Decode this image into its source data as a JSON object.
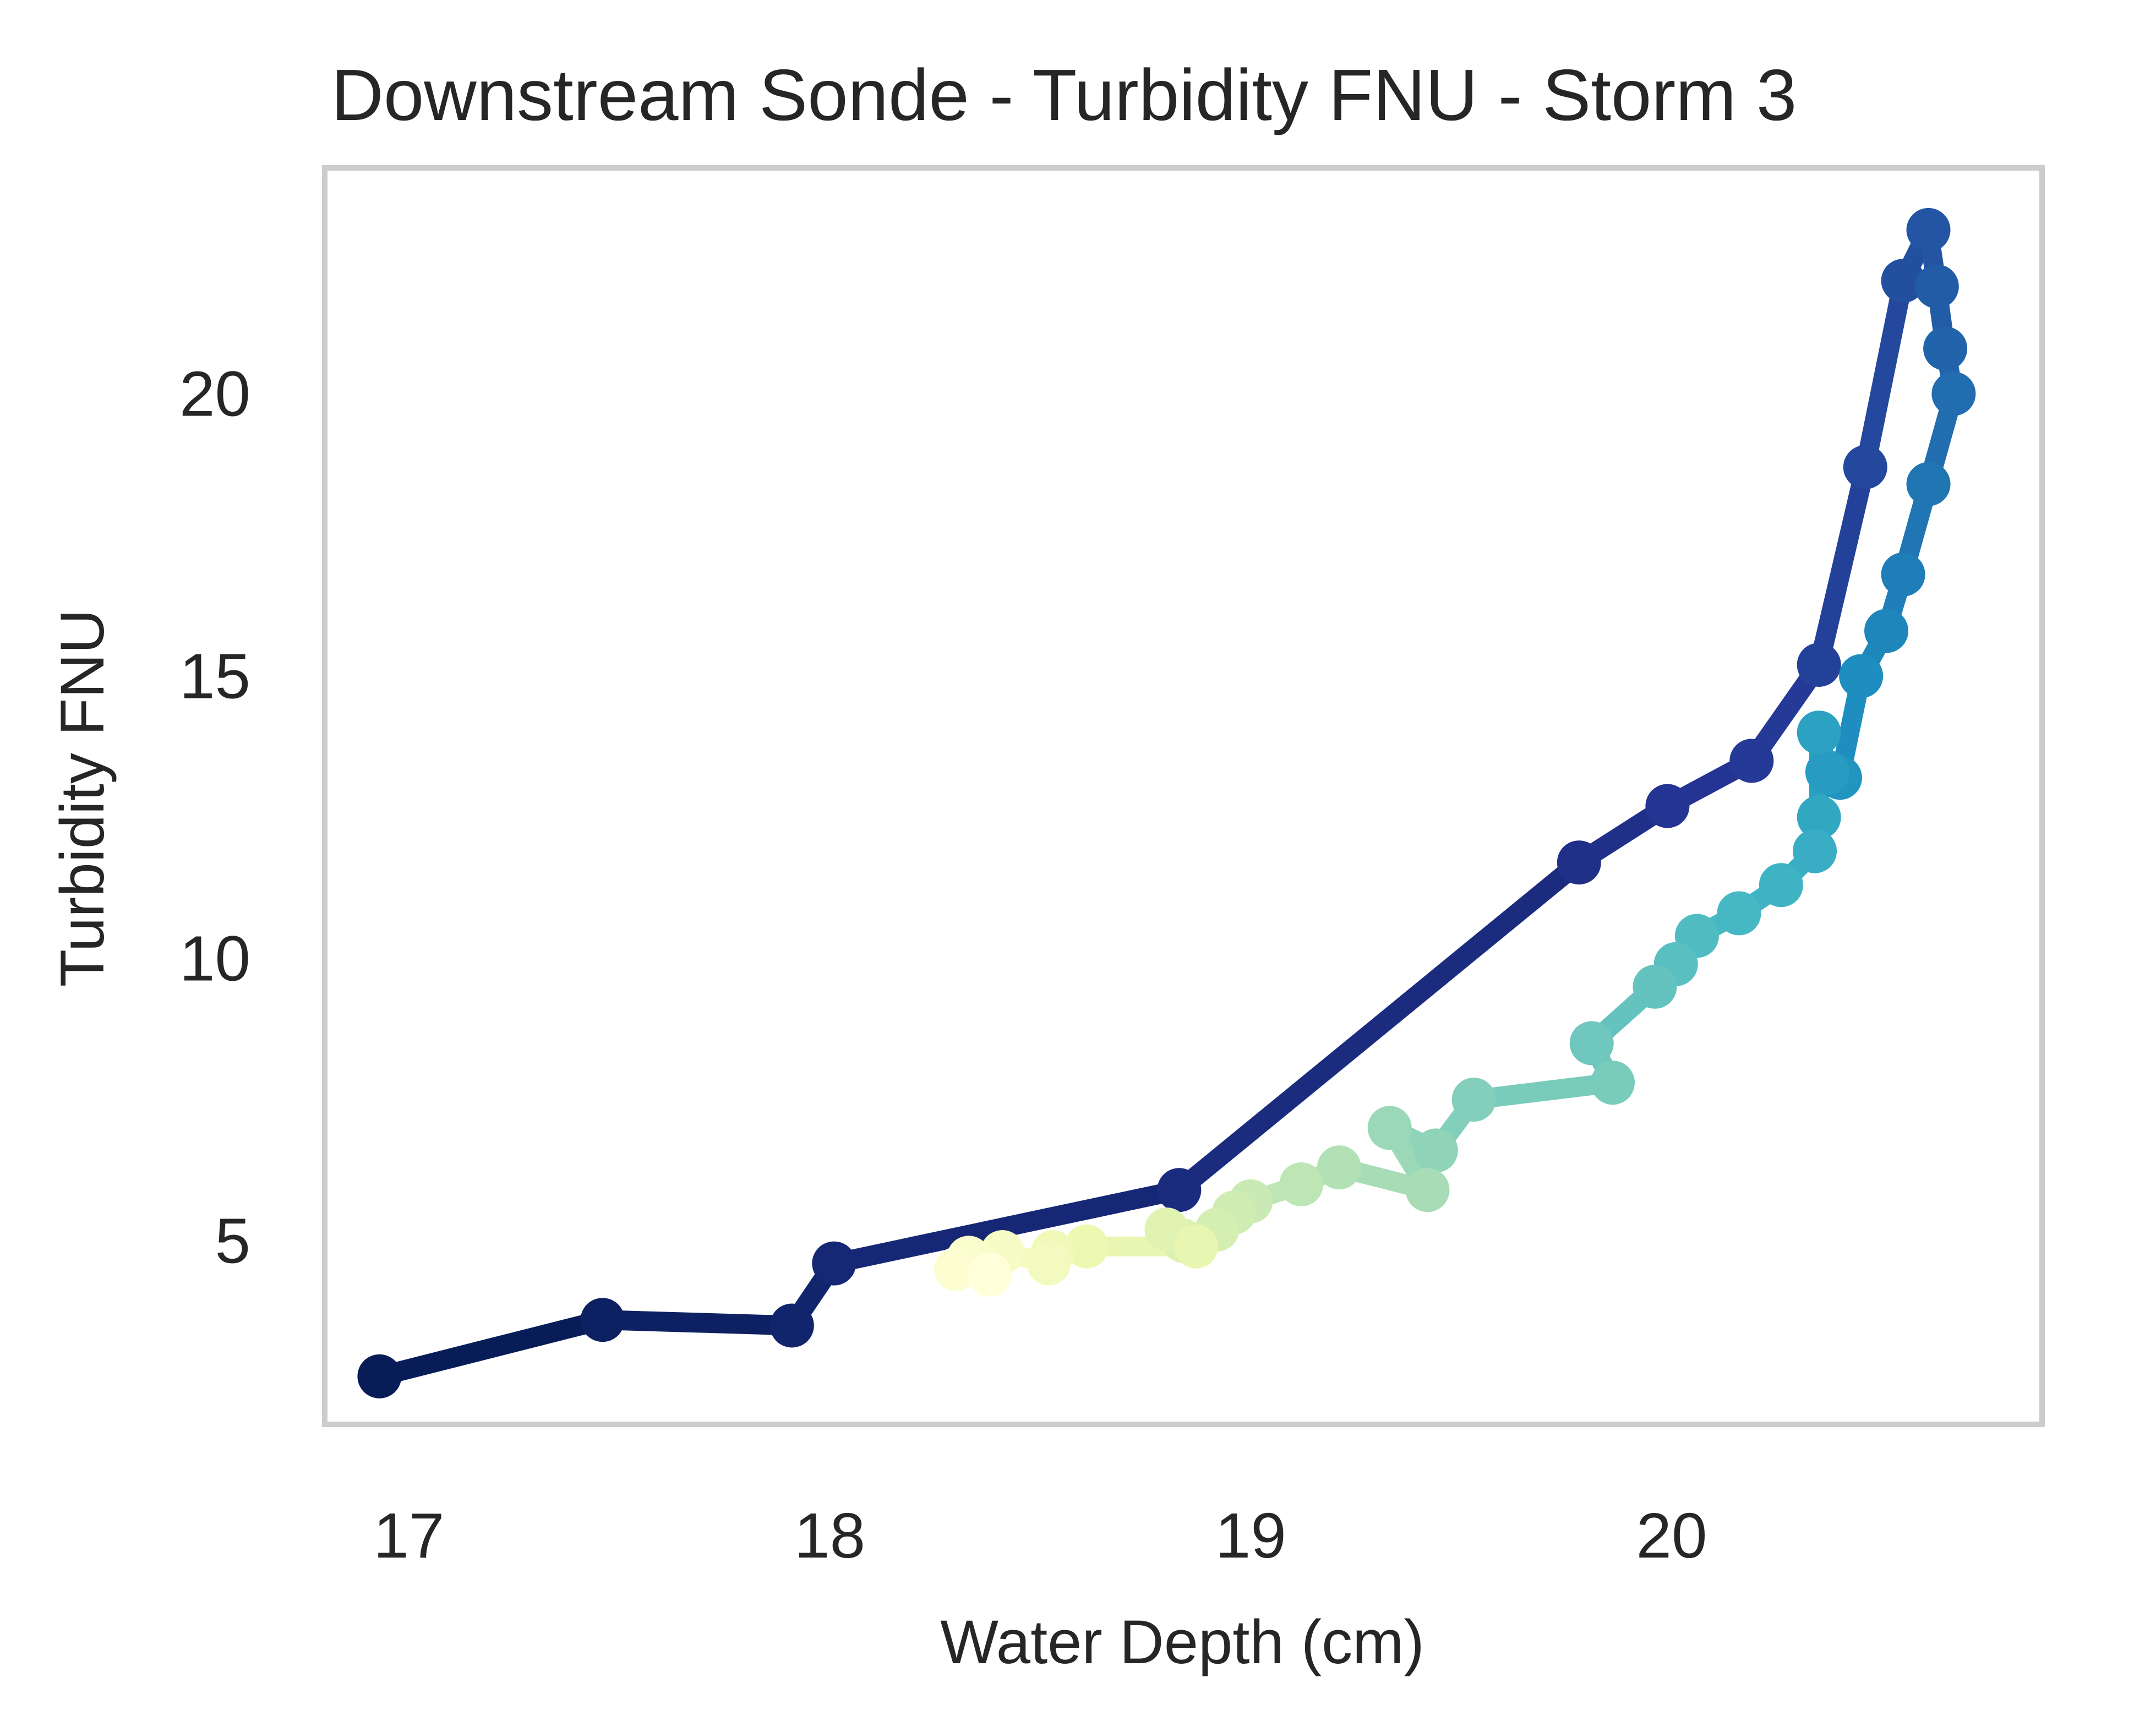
{
  "chart_data": {
    "type": "line",
    "title": "Downstream Sonde - Turbidity FNU - Storm 3",
    "xlabel": "Water Depth (cm)",
    "ylabel": "Turbidity FNU",
    "xlim": [
      16.8,
      20.88
    ],
    "ylim": [
      1.75,
      24.0
    ],
    "xticks": [
      17,
      18,
      19,
      20
    ],
    "yticks": [
      5,
      10,
      15,
      20
    ],
    "grid": false,
    "colormap": "YlGnBu",
    "colormap_stops": [
      "#081d58",
      "#253494",
      "#225ea8",
      "#1d91c0",
      "#41b6c4",
      "#7fcdbb",
      "#c7e9b4",
      "#edf8b1",
      "#ffffd9"
    ],
    "frame_color": "#cccccc",
    "series": [
      {
        "x": [
          16.93,
          17.46,
          17.91,
          18.01,
          18.83,
          19.78,
          19.99,
          20.19,
          20.35,
          20.46,
          20.55,
          20.61,
          20.63,
          20.65,
          20.67,
          20.61,
          20.55,
          20.51,
          20.45,
          20.4,
          20.37,
          20.35,
          20.35,
          20.34,
          20.26,
          20.16,
          20.06,
          20.01,
          19.96,
          19.81,
          19.86,
          19.53,
          19.44,
          19.33,
          19.42,
          19.21,
          19.12,
          19.0,
          18.96,
          18.92,
          18.84,
          18.8,
          18.87,
          18.61,
          18.53,
          18.52,
          18.41,
          18.33,
          18.3,
          18.38
        ],
        "y": [
          2.6,
          3.6,
          3.5,
          4.6,
          5.9,
          11.7,
          12.7,
          13.5,
          15.2,
          18.7,
          22.0,
          22.9,
          21.9,
          20.8,
          20.0,
          18.4,
          16.8,
          15.8,
          15.0,
          13.2,
          13.3,
          14.0,
          12.5,
          11.9,
          11.3,
          10.8,
          10.4,
          9.9,
          9.5,
          8.5,
          7.8,
          7.5,
          6.6,
          7.0,
          5.9,
          6.3,
          6.0,
          5.7,
          5.5,
          5.2,
          5.0,
          5.2,
          4.9,
          4.9,
          4.8,
          4.6,
          4.8,
          4.7,
          4.5,
          4.4
        ]
      }
    ]
  }
}
